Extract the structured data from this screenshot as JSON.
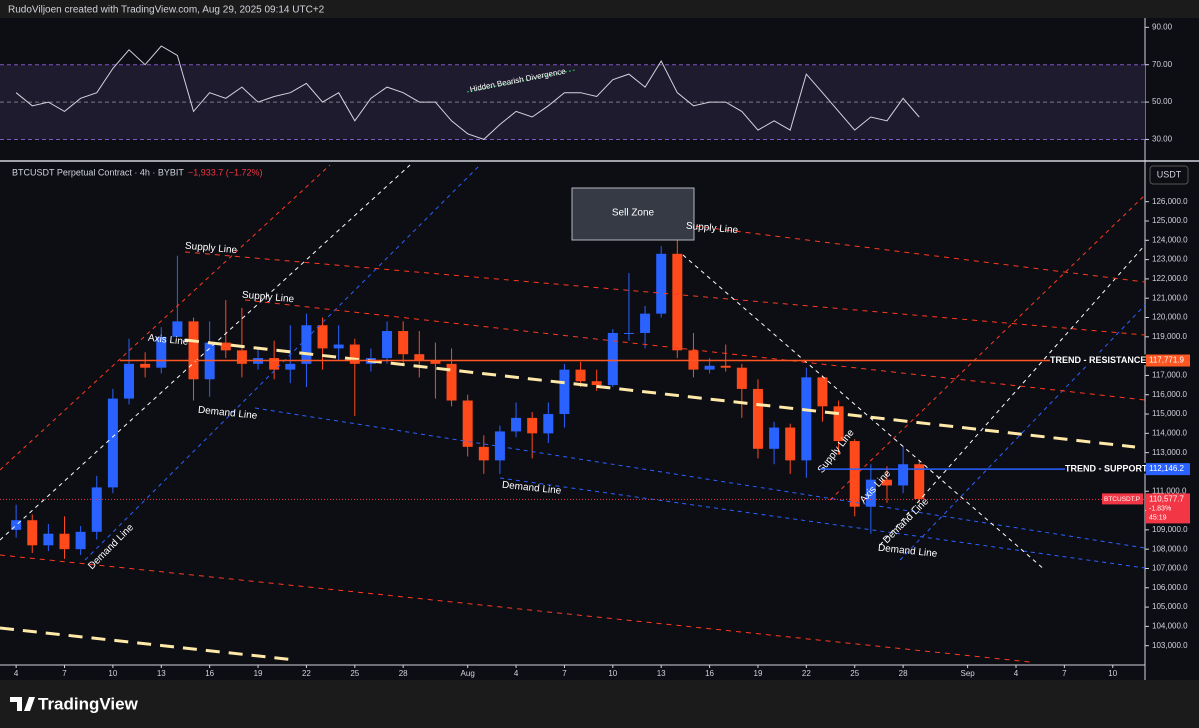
{
  "header": {
    "text": "RudoViljoen created with TradingView.com, Aug 29, 2025 09:14 UTC+2"
  },
  "footer": {
    "brand": "TradingView"
  },
  "chart_data": [
    {
      "type": "candlestick",
      "title": "BTCUSDT Perpetual Contract · 4h · BYBIT",
      "subtitle": "−1,933.7 (−1.72%)",
      "currency": "USDT",
      "up_color": "#2962ff",
      "down_color": "#ff4a1c",
      "x": [
        "2025-07-04",
        "2025-07-05",
        "2025-07-06",
        "2025-07-07",
        "2025-07-08",
        "2025-07-09",
        "2025-07-10",
        "2025-07-11",
        "2025-07-12",
        "2025-07-13",
        "2025-07-14",
        "2025-07-15",
        "2025-07-16",
        "2025-07-17",
        "2025-07-18",
        "2025-07-19",
        "2025-07-20",
        "2025-07-21",
        "2025-07-22",
        "2025-07-23",
        "2025-07-24",
        "2025-07-25",
        "2025-07-26",
        "2025-07-27",
        "2025-07-28",
        "2025-07-29",
        "2025-07-30",
        "2025-07-31",
        "2025-08-01",
        "2025-08-02",
        "2025-08-03",
        "2025-08-04",
        "2025-08-05",
        "2025-08-06",
        "2025-08-07",
        "2025-08-08",
        "2025-08-09",
        "2025-08-10",
        "2025-08-11",
        "2025-08-12",
        "2025-08-13",
        "2025-08-14",
        "2025-08-15",
        "2025-08-16",
        "2025-08-17",
        "2025-08-18",
        "2025-08-19",
        "2025-08-20",
        "2025-08-21",
        "2025-08-22",
        "2025-08-23",
        "2025-08-24",
        "2025-08-25",
        "2025-08-26",
        "2025-08-27",
        "2025-08-28",
        "2025-08-29"
      ],
      "open": [
        109000,
        109500,
        108200,
        108800,
        108000,
        108900,
        111200,
        115800,
        117600,
        117400,
        119000,
        119800,
        116800,
        118700,
        118300,
        117600,
        117900,
        117300,
        117600,
        119600,
        118400,
        118600,
        117600,
        117900,
        119300,
        118100,
        117800,
        117600,
        115700,
        113300,
        112600,
        114100,
        114800,
        114000,
        115000,
        117300,
        116700,
        116500,
        119200,
        119200,
        120200,
        123300,
        118300,
        117300,
        117500,
        117400,
        116300,
        113200,
        114300,
        112600,
        116900,
        115400,
        113600,
        110200,
        111600,
        111300,
        112400
      ],
      "high": [
        110300,
        109800,
        109300,
        109700,
        109200,
        111800,
        116300,
        118900,
        118200,
        119500,
        123200,
        120000,
        119800,
        120900,
        120500,
        118400,
        118800,
        119600,
        120200,
        120000,
        119600,
        118900,
        118400,
        119800,
        119800,
        119300,
        118700,
        118400,
        116000,
        113900,
        114400,
        115600,
        115100,
        115600,
        117600,
        117700,
        117300,
        119400,
        122300,
        120600,
        123700,
        124200,
        119200,
        117900,
        118600,
        117600,
        116800,
        114600,
        114500,
        117400,
        117000,
        115700,
        113700,
        112400,
        112300,
        113300,
        112600
      ],
      "low": [
        108600,
        107800,
        107900,
        107500,
        107700,
        108500,
        110900,
        115500,
        116900,
        117100,
        119000,
        115700,
        115900,
        117900,
        116900,
        117300,
        116800,
        116600,
        116400,
        117300,
        117800,
        114900,
        117200,
        117600,
        117500,
        116900,
        115800,
        115400,
        112800,
        111900,
        111900,
        113800,
        112700,
        113500,
        114300,
        116400,
        116200,
        116400,
        118800,
        118400,
        120000,
        117900,
        116900,
        117100,
        117200,
        114800,
        112700,
        112400,
        111900,
        111700,
        114600,
        112900,
        109700,
        108800,
        110400,
        110900,
        110400
      ],
      "close": [
        109500,
        108200,
        108800,
        108000,
        108900,
        111200,
        115800,
        117600,
        117400,
        119000,
        119800,
        116800,
        118700,
        118300,
        117600,
        117900,
        117300,
        117600,
        119600,
        118400,
        118600,
        117600,
        117900,
        119300,
        118100,
        117800,
        117600,
        115700,
        113300,
        112600,
        114100,
        114800,
        114000,
        115000,
        117300,
        116700,
        116500,
        119200,
        119200,
        120200,
        123300,
        118300,
        117300,
        117500,
        117400,
        116300,
        113200,
        114300,
        112600,
        116900,
        115400,
        113600,
        110200,
        111600,
        111300,
        112400,
        110600
      ],
      "xlim": [
        "2025-07-03",
        "2025-09-12"
      ],
      "xticks": [
        {
          "value": "2025-07-04",
          "label": "4"
        },
        {
          "value": "2025-07-07",
          "label": "7"
        },
        {
          "value": "2025-07-10",
          "label": "10"
        },
        {
          "value": "2025-07-13",
          "label": "13"
        },
        {
          "value": "2025-07-16",
          "label": "16"
        },
        {
          "value": "2025-07-19",
          "label": "19"
        },
        {
          "value": "2025-07-22",
          "label": "22"
        },
        {
          "value": "2025-07-25",
          "label": "25"
        },
        {
          "value": "2025-07-28",
          "label": "28"
        },
        {
          "value": "2025-08-01",
          "label": "Aug"
        },
        {
          "value": "2025-08-04",
          "label": "4"
        },
        {
          "value": "2025-08-07",
          "label": "7"
        },
        {
          "value": "2025-08-10",
          "label": "10"
        },
        {
          "value": "2025-08-13",
          "label": "13"
        },
        {
          "value": "2025-08-16",
          "label": "16"
        },
        {
          "value": "2025-08-19",
          "label": "19"
        },
        {
          "value": "2025-08-22",
          "label": "22"
        },
        {
          "value": "2025-08-25",
          "label": "25"
        },
        {
          "value": "2025-08-28",
          "label": "28"
        },
        {
          "value": "2025-09-01",
          "label": "Sep"
        },
        {
          "value": "2025-09-04",
          "label": "4"
        },
        {
          "value": "2025-09-07",
          "label": "7"
        },
        {
          "value": "2025-09-10",
          "label": "10"
        }
      ],
      "ylim": [
        102000,
        127900
      ],
      "yticks": [
        {
          "value": 103000,
          "label": "103,000.0"
        },
        {
          "value": 104000,
          "label": "104,000.0"
        },
        {
          "value": 105000,
          "label": "105,000.0"
        },
        {
          "value": 106000,
          "label": "106,000.0"
        },
        {
          "value": 107000,
          "label": "107,000.0"
        },
        {
          "value": 108000,
          "label": "108,000.0"
        },
        {
          "value": 109000,
          "label": "109,000.0"
        },
        {
          "value": 110000,
          "label": "110,000.0"
        },
        {
          "value": 111000,
          "label": "111,000.0"
        },
        {
          "value": 113000,
          "label": "113,000.0"
        },
        {
          "value": 114000,
          "label": "114,000.0"
        },
        {
          "value": 115000,
          "label": "115,000.0"
        },
        {
          "value": 116000,
          "label": "116,000.0"
        },
        {
          "value": 117000,
          "label": "117,000.0"
        },
        {
          "value": 119000,
          "label": "119,000.0"
        },
        {
          "value": 120000,
          "label": "120,000.0"
        },
        {
          "value": 121000,
          "label": "121,000.0"
        },
        {
          "value": 122000,
          "label": "122,000.0"
        },
        {
          "value": 123000,
          "label": "123,000.0"
        },
        {
          "value": 124000,
          "label": "124,000.0"
        },
        {
          "value": 125000,
          "label": "125,000.0"
        },
        {
          "value": 126000,
          "label": "126,000.0"
        }
      ],
      "levels": [
        {
          "name": "TREND - RESISTANCE",
          "value": 117771.9,
          "label": "117,771.9",
          "color": "#ff5722"
        },
        {
          "name": "TREND - SUPPORT",
          "value": 112146.2,
          "label": "112,146.2",
          "color": "#2962ff"
        }
      ],
      "last_price": {
        "symbol": "BTCUSDT.P",
        "value": 110577.7,
        "label": "110,577.7",
        "change": "-1.83%",
        "countdown": "45:19",
        "color": "#f23645"
      },
      "annotations": [
        "Sell Zone",
        "Supply Line",
        "Supply Line",
        "Supply Line",
        "Supply Line",
        "Axis Line",
        "Axis Line",
        "Demand Line",
        "Demand Line",
        "Demand Line",
        "Demand Line",
        "Demand Line"
      ]
    },
    {
      "type": "line",
      "color": "#d1d4dc",
      "x": [
        "2025-07-04",
        "2025-07-05",
        "2025-07-06",
        "2025-07-07",
        "2025-07-08",
        "2025-07-09",
        "2025-07-10",
        "2025-07-11",
        "2025-07-12",
        "2025-07-13",
        "2025-07-14",
        "2025-07-15",
        "2025-07-16",
        "2025-07-17",
        "2025-07-18",
        "2025-07-19",
        "2025-07-20",
        "2025-07-21",
        "2025-07-22",
        "2025-07-23",
        "2025-07-24",
        "2025-07-25",
        "2025-07-26",
        "2025-07-27",
        "2025-07-28",
        "2025-07-29",
        "2025-07-30",
        "2025-07-31",
        "2025-08-01",
        "2025-08-02",
        "2025-08-03",
        "2025-08-04",
        "2025-08-05",
        "2025-08-06",
        "2025-08-07",
        "2025-08-08",
        "2025-08-09",
        "2025-08-10",
        "2025-08-11",
        "2025-08-12",
        "2025-08-13",
        "2025-08-14",
        "2025-08-15",
        "2025-08-16",
        "2025-08-17",
        "2025-08-18",
        "2025-08-19",
        "2025-08-20",
        "2025-08-21",
        "2025-08-22",
        "2025-08-23",
        "2025-08-24",
        "2025-08-25",
        "2025-08-26",
        "2025-08-27",
        "2025-08-28",
        "2025-08-29"
      ],
      "values": [
        55,
        48,
        50,
        45,
        52,
        55,
        68,
        78,
        70,
        80,
        75,
        45,
        55,
        52,
        58,
        50,
        53,
        55,
        60,
        50,
        55,
        40,
        52,
        58,
        55,
        50,
        50,
        40,
        33,
        30,
        38,
        45,
        42,
        48,
        55,
        55,
        53,
        62,
        65,
        58,
        72,
        55,
        48,
        50,
        50,
        45,
        35,
        40,
        35,
        65,
        55,
        45,
        35,
        42,
        40,
        52,
        42
      ],
      "xlim": [
        "2025-07-03",
        "2025-09-12"
      ],
      "ylim": [
        19,
        95
      ],
      "yticks": [
        {
          "value": 90,
          "label": "90.00"
        },
        {
          "value": 70,
          "label": "70.00"
        },
        {
          "value": 50,
          "label": "50.00"
        },
        {
          "value": 30,
          "label": "30.00"
        }
      ],
      "annotations": [
        "Hidden Bearish Divergence"
      ]
    }
  ]
}
